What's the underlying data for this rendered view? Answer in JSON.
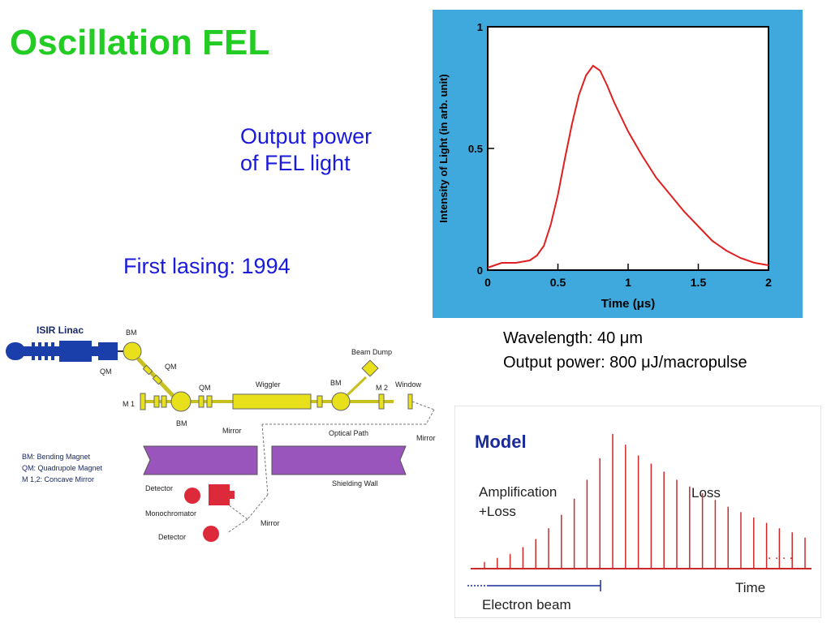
{
  "slide": {
    "title": "Oscillation FEL",
    "output_label": [
      "Output power",
      "of FEL light"
    ],
    "first_lasing": "First lasing: 1994",
    "specs": {
      "wavelength": "Wavelength: 40 μm",
      "output_power": "Output power: 800 μJ/macropulse"
    }
  },
  "diagram": {
    "linac": "ISIR Linac",
    "bm": "BM",
    "qm": "QM",
    "m1": "M 1",
    "m2": "M 2",
    "beam_dump": "Beam Dump",
    "wiggler": "Wiggler",
    "window": "Window",
    "mirror": "Mirror",
    "optical_path": "Optical Path",
    "shielding_wall": "Shielding Wall",
    "detector": "Detector",
    "monochromator": "Monochromator",
    "legend": [
      "BM: Bending Magnet",
      "QM: Quadrupole Magnet",
      "M 1,2: Concave Mirror"
    ]
  },
  "model": {
    "title": "Model",
    "amplification": "Amplification",
    "plus_loss": "+Loss",
    "loss": "Loss",
    "time": "Time",
    "electron_beam": "Electron beam",
    "dots": ". . . .",
    "pulse_heights": [
      0.05,
      0.08,
      0.11,
      0.16,
      0.22,
      0.3,
      0.4,
      0.52,
      0.66,
      0.82,
      1.0,
      0.92,
      0.84,
      0.78,
      0.72,
      0.66,
      0.61,
      0.56,
      0.51,
      0.46,
      0.42,
      0.38,
      0.34,
      0.3,
      0.27,
      0.23
    ]
  },
  "chart_data": {
    "type": "line",
    "ylabel": "Intensity of Light (in arb. unit)",
    "xlabel": "Time (μs)",
    "xlim": [
      0,
      2
    ],
    "ylim": [
      0,
      1
    ],
    "xticks": [
      "0",
      "0.5",
      "1",
      "1.5",
      "2"
    ],
    "yticks": [
      "0",
      "0.5",
      "1"
    ],
    "background": "#3fa8dc",
    "line_color": "#e02020",
    "series": [
      {
        "x": [
          0,
          0.1,
          0.2,
          0.3,
          0.35,
          0.4,
          0.45,
          0.5,
          0.55,
          0.6,
          0.65,
          0.7,
          0.75,
          0.8,
          0.85,
          0.9,
          0.95,
          1.0,
          1.1,
          1.2,
          1.3,
          1.4,
          1.5,
          1.6,
          1.7,
          1.8,
          1.9,
          2.0
        ],
        "y": [
          0.01,
          0.03,
          0.03,
          0.04,
          0.06,
          0.1,
          0.19,
          0.31,
          0.46,
          0.6,
          0.72,
          0.8,
          0.84,
          0.82,
          0.76,
          0.69,
          0.63,
          0.57,
          0.47,
          0.38,
          0.31,
          0.24,
          0.18,
          0.12,
          0.08,
          0.05,
          0.03,
          0.02
        ]
      }
    ]
  }
}
